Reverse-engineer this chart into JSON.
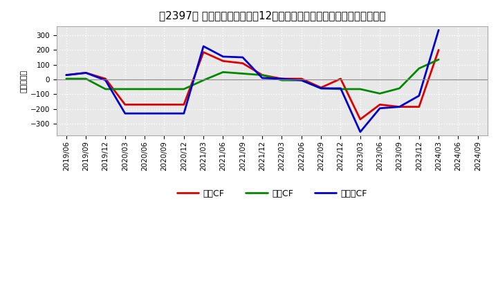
{
  "title": "［2397］ キャッシュフローの12か月移動合計の対前年同期増減額の推移",
  "ylabel": "（百万円）",
  "background_color": "#ffffff",
  "plot_bg_color": "#e8e8e8",
  "grid_color": "#ffffff",
  "x_labels": [
    "2019/06",
    "2019/09",
    "2019/12",
    "2020/03",
    "2020/06",
    "2020/09",
    "2020/12",
    "2021/03",
    "2021/06",
    "2021/09",
    "2021/12",
    "2022/03",
    "2022/06",
    "2022/09",
    "2022/12",
    "2023/03",
    "2023/06",
    "2023/09",
    "2023/12",
    "2024/03",
    "2024/06",
    "2024/09"
  ],
  "series": {
    "営業CF": {
      "color": "#dd0000",
      "values": [
        30,
        45,
        5,
        -170,
        -170,
        -170,
        -170,
        185,
        125,
        110,
        30,
        5,
        5,
        -55,
        5,
        -270,
        -170,
        -185,
        -185,
        200,
        null,
        null
      ]
    },
    "投資CF": {
      "color": "#008800",
      "values": [
        5,
        5,
        -65,
        -65,
        -65,
        -65,
        -65,
        -5,
        50,
        40,
        30,
        -5,
        -5,
        -60,
        -65,
        -65,
        -95,
        -60,
        75,
        135,
        null,
        null
      ]
    },
    "フリーCF": {
      "color": "#0000cc",
      "values": [
        30,
        45,
        -5,
        -230,
        -230,
        -230,
        -230,
        225,
        155,
        150,
        10,
        5,
        -5,
        -60,
        -60,
        -355,
        -195,
        -185,
        -110,
        335,
        null,
        null
      ]
    }
  },
  "ylim": [
    -380,
    360
  ],
  "yticks": [
    -300,
    -200,
    -100,
    0,
    100,
    200,
    300
  ],
  "linewidth": 2.0,
  "title_fontsize": 11,
  "axis_fontsize": 8,
  "tick_fontsize": 7.5,
  "legend_fontsize": 9
}
